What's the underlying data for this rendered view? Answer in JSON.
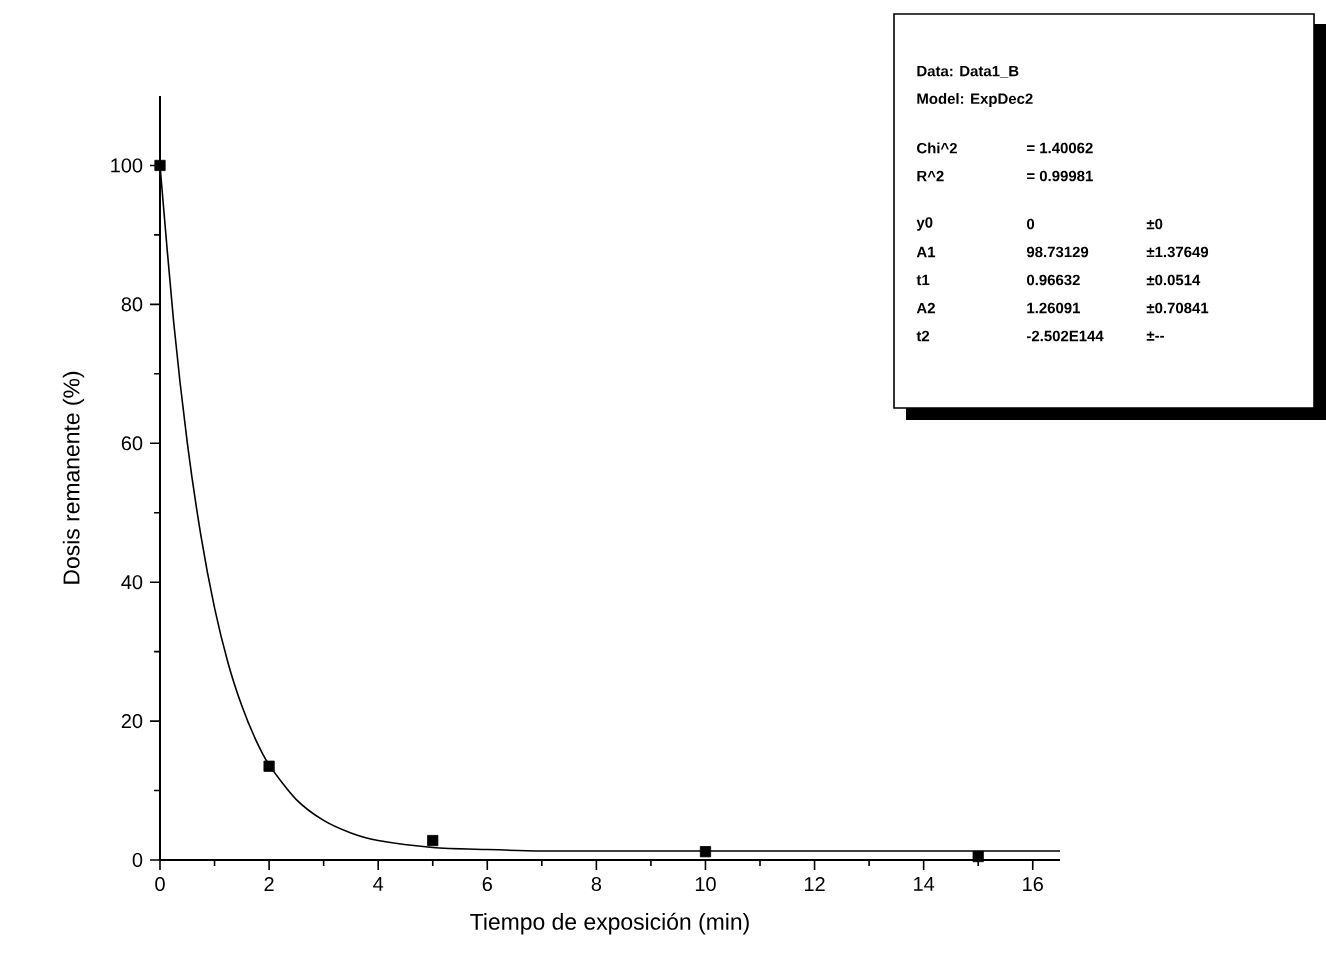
{
  "chart_data": {
    "type": "scatter",
    "xlabel": "Tiempo de exposición (min)",
    "ylabel": "Dosis remanente (%)",
    "xlim": [
      0,
      16.5
    ],
    "ylim": [
      0,
      110
    ],
    "xticks": [
      0,
      2,
      4,
      6,
      8,
      10,
      12,
      14,
      16
    ],
    "yticks": [
      0,
      20,
      40,
      60,
      80,
      100
    ],
    "grid": false,
    "marker": "square",
    "series": [
      {
        "color": "#000000",
        "x": [
          0,
          2,
          5,
          10,
          15
        ],
        "values": [
          100,
          13.5,
          2.8,
          1.2,
          0.5
        ]
      },
      {
        "type": "line",
        "color": "#000000",
        "marker": "none",
        "line_style": "solid",
        "x": [
          0,
          0.25,
          0.5,
          0.75,
          1,
          1.25,
          1.5,
          1.75,
          2,
          2.5,
          3,
          3.5,
          4,
          5,
          6,
          7,
          8,
          10,
          12,
          15,
          16.5
        ],
        "values": [
          100,
          77.5,
          60.1,
          46.7,
          36.3,
          28.3,
          22.2,
          17.4,
          13.7,
          8.7,
          5.7,
          3.9,
          2.8,
          1.8,
          1.5,
          1.3,
          1.3,
          1.3,
          1.3,
          1.3,
          1.3
        ]
      }
    ],
    "annotations": [
      "Data: Data1_B",
      "Model: ExpDec2",
      "Chi^2",
      "= 1.40062",
      "R^2",
      "= 0.99981",
      "y0",
      "0",
      "±0",
      "A1",
      "98.73129",
      "±1.37649",
      "t1",
      "0.96632",
      "±0.0514",
      "A2",
      "1.26091",
      "±0.70841",
      "t2",
      "-2.502E144",
      "±--"
    ]
  }
}
